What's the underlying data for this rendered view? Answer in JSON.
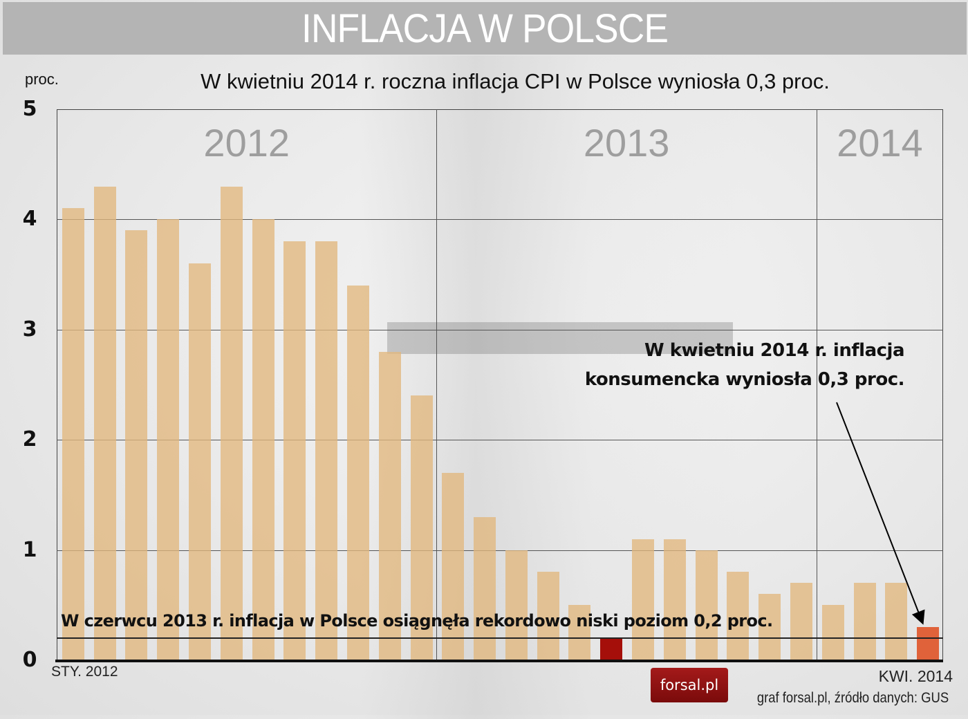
{
  "title": "INFLACJA W POLSCE",
  "subtitle": "W kwietniu 2014 r. roczna inflacja CPI w Polsce wyniosła 0,3 proc.",
  "unit_label": "proc.",
  "y_ticks": [
    "0",
    "1",
    "2",
    "3",
    "4",
    "5"
  ],
  "year_labels": [
    "2012",
    "2013",
    "2014"
  ],
  "x_start_label": "STY. 2012",
  "x_end_label": "KWI. 2014",
  "annotations": {
    "record_low": "W czerwcu 2013 r. inflacja w Polsce osiągnęła rekordowo niski poziom 0,2 proc.",
    "latest_line1": "W kwietniu 2014 r. inflacja",
    "latest_line2": "konsumencka wyniosła 0,3 proc."
  },
  "logo": {
    "text": "forsal.pl"
  },
  "source": "graf forsal.pl, źródło danych: GUS",
  "colors": {
    "bar": "#e2b77d",
    "record_bar": "#a50f0a",
    "latest_bar": "#e0623a",
    "title_band": "#b4b4b4",
    "logo": "#8e1212"
  },
  "chart_data": {
    "type": "bar",
    "title": "INFLACJA W POLSCE",
    "subtitle": "W kwietniu 2014 r. roczna inflacja CPI w Polsce wyniosła 0,3 proc.",
    "xlabel": "",
    "ylabel": "proc.",
    "ylim": [
      0,
      5
    ],
    "yticks": [
      0,
      1,
      2,
      3,
      4,
      5
    ],
    "grid": true,
    "legend": null,
    "categories": [
      "2012-01",
      "2012-02",
      "2012-03",
      "2012-04",
      "2012-05",
      "2012-06",
      "2012-07",
      "2012-08",
      "2012-09",
      "2012-10",
      "2012-11",
      "2012-12",
      "2013-01",
      "2013-02",
      "2013-03",
      "2013-04",
      "2013-05",
      "2013-06",
      "2013-07",
      "2013-08",
      "2013-09",
      "2013-10",
      "2013-11",
      "2013-12",
      "2014-01",
      "2014-02",
      "2014-03",
      "2014-04"
    ],
    "values": [
      4.1,
      4.3,
      3.9,
      4.0,
      3.6,
      4.3,
      4.0,
      3.8,
      3.8,
      3.4,
      2.8,
      2.4,
      1.7,
      1.3,
      1.0,
      0.8,
      0.5,
      0.2,
      1.1,
      1.1,
      1.0,
      0.8,
      0.6,
      0.7,
      0.5,
      0.7,
      0.7,
      0.3
    ],
    "highlighted": [
      {
        "category": "2013-06",
        "value": 0.2,
        "color": "#a50f0a",
        "note": "rekordowo niski poziom"
      },
      {
        "category": "2014-04",
        "value": 0.3,
        "color": "#e0623a",
        "note": "najnowszy odczyt"
      }
    ],
    "reference_line": 0.2,
    "year_groups": [
      {
        "label": "2012",
        "start": 0,
        "count": 12
      },
      {
        "label": "2013",
        "start": 12,
        "count": 12
      },
      {
        "label": "2014",
        "start": 24,
        "count": 4
      }
    ],
    "x_start_label": "STY. 2012",
    "x_end_label": "KWI. 2014",
    "annotations": [
      "W czerwcu 2013 r. inflacja w Polsce osiągnęła rekordowo niski poziom 0,2 proc.",
      "W kwietniu 2014 r. inflacja konsumencka wyniosła 0,3 proc."
    ],
    "source": "graf forsal.pl, źródło danych: GUS"
  }
}
